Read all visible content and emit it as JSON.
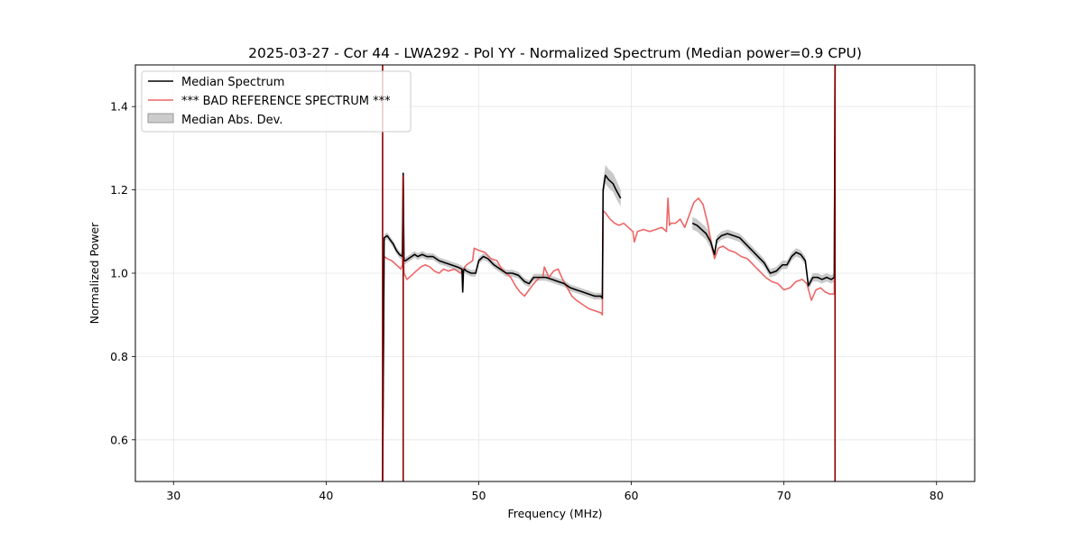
{
  "chart_data": {
    "type": "line",
    "title": "2025-03-27 - Cor 44 - LWA292 - Pol YY - Normalized Spectrum (Median power=0.9 CPU)",
    "xlabel": "Frequency (MHz)",
    "ylabel": "Normalized Power",
    "xlim": [
      27.5,
      82.5
    ],
    "ylim": [
      0.5,
      1.5
    ],
    "xticks": [
      30,
      40,
      50,
      60,
      70,
      80
    ],
    "yticks": [
      0.6,
      0.8,
      1.0,
      1.2,
      1.4
    ],
    "grid": true,
    "legend_position": "top-left",
    "colors": {
      "median": "#000000",
      "reference": "#ee6666",
      "mad": "#bbbbbb",
      "spike": "#8b0000"
    },
    "series": [
      {
        "name": "Median Spectrum",
        "x": [
          43.7,
          43.8,
          44.0,
          44.2,
          44.4,
          44.6,
          44.8,
          45.0,
          45.05,
          45.1,
          45.2,
          45.4,
          45.6,
          45.8,
          46.0,
          46.3,
          46.6,
          47.0,
          47.4,
          47.8,
          48.2,
          48.6,
          48.9,
          48.95,
          49.0,
          49.05,
          49.2,
          49.5,
          49.8,
          50.0,
          50.3,
          50.6,
          51.0,
          51.4,
          51.8,
          52.2,
          52.6,
          53.0,
          53.3,
          53.6,
          54.0,
          54.4,
          54.8,
          55.2,
          55.6,
          56.0,
          56.4,
          56.8,
          57.2,
          57.6,
          58.0,
          58.1,
          58.15,
          58.3,
          58.5,
          58.8,
          59.0,
          59.3
        ],
        "values": [
          0.5,
          1.085,
          1.09,
          1.08,
          1.07,
          1.055,
          1.045,
          1.04,
          1.24,
          1.03,
          1.03,
          1.035,
          1.04,
          1.045,
          1.04,
          1.045,
          1.04,
          1.04,
          1.03,
          1.025,
          1.02,
          1.015,
          1.01,
          0.955,
          1.005,
          1.01,
          1.005,
          1.0,
          1.0,
          1.03,
          1.04,
          1.035,
          1.02,
          1.01,
          1.0,
          1.0,
          0.995,
          0.98,
          0.975,
          0.99,
          0.99,
          0.99,
          0.985,
          0.98,
          0.975,
          0.965,
          0.96,
          0.955,
          0.95,
          0.945,
          0.945,
          0.94,
          1.2,
          1.235,
          1.225,
          1.215,
          1.2,
          1.18
        ]
      },
      {
        "name": "Median Spectrum",
        "x": [
          64.0,
          64.3,
          64.6,
          64.9,
          65.2,
          65.45,
          65.6,
          65.9,
          66.3,
          66.7,
          67.1,
          67.5,
          67.9,
          68.3,
          68.7,
          69.1,
          69.5,
          69.9,
          70.2,
          70.5,
          70.8,
          71.1,
          71.4,
          71.6,
          71.9,
          72.2,
          72.5,
          72.8,
          73.1,
          73.3,
          73.35
        ],
        "values": [
          1.12,
          1.115,
          1.105,
          1.095,
          1.075,
          1.045,
          1.08,
          1.09,
          1.095,
          1.09,
          1.085,
          1.07,
          1.055,
          1.04,
          1.025,
          1.0,
          1.005,
          1.02,
          1.02,
          1.04,
          1.05,
          1.045,
          1.03,
          0.97,
          0.99,
          0.99,
          0.985,
          0.99,
          0.985,
          0.99,
          1.5
        ]
      },
      {
        "name": "*** BAD REFERENCE SPECTRUM ***",
        "x": [
          43.7,
          43.8,
          44.0,
          44.3,
          44.6,
          44.9,
          45.0,
          45.05,
          45.1,
          45.3,
          45.6,
          45.9,
          46.2,
          46.5,
          46.8,
          47.1,
          47.4,
          47.7,
          48.0,
          48.4,
          48.8,
          49.2,
          49.6,
          49.7,
          50.0,
          50.4,
          50.8,
          51.2,
          51.5,
          51.8,
          52.1,
          52.4,
          52.7,
          53.0,
          53.3,
          53.6,
          54.0,
          54.2,
          54.3,
          54.6,
          54.9,
          55.2,
          55.5,
          55.8,
          56.1,
          56.4,
          56.8,
          57.2,
          57.6,
          58.0,
          58.1,
          58.15,
          58.3,
          58.6,
          58.9,
          59.2,
          59.5,
          59.8,
          60.1,
          60.2,
          60.4,
          60.8,
          61.2,
          61.6,
          62.0,
          62.3,
          62.4,
          62.5,
          62.6,
          62.9,
          63.2,
          63.5,
          63.8,
          64.1,
          64.4,
          64.7,
          65.0,
          65.3,
          65.45,
          65.7,
          66.0,
          66.4,
          66.8,
          67.2,
          67.6,
          68.0,
          68.4,
          68.8,
          69.2,
          69.6,
          70.0,
          70.4,
          70.8,
          71.2,
          71.5,
          71.8,
          72.1,
          72.4,
          72.7,
          73.0,
          73.3,
          73.35
        ],
        "values": [
          0.5,
          1.04,
          1.035,
          1.03,
          1.02,
          1.01,
          1.02,
          1.235,
          1.0,
          0.985,
          0.995,
          1.005,
          1.015,
          1.02,
          1.015,
          1.005,
          1.0,
          1.01,
          1.005,
          1.01,
          1.0,
          1.02,
          1.03,
          1.06,
          1.055,
          1.05,
          1.035,
          1.03,
          1.01,
          1.0,
          0.99,
          0.97,
          0.955,
          0.945,
          0.96,
          0.975,
          0.99,
          0.99,
          1.015,
          0.99,
          1.005,
          1.01,
          0.985,
          0.965,
          0.945,
          0.935,
          0.925,
          0.915,
          0.91,
          0.905,
          0.9,
          1.15,
          1.145,
          1.13,
          1.12,
          1.115,
          1.12,
          1.11,
          1.1,
          1.075,
          1.1,
          1.105,
          1.1,
          1.105,
          1.11,
          1.1,
          1.18,
          1.115,
          1.12,
          1.12,
          1.13,
          1.11,
          1.14,
          1.17,
          1.18,
          1.165,
          1.12,
          1.06,
          1.035,
          1.06,
          1.065,
          1.055,
          1.05,
          1.04,
          1.035,
          1.02,
          1.005,
          0.99,
          0.98,
          0.975,
          0.96,
          0.965,
          0.98,
          0.985,
          0.975,
          0.935,
          0.96,
          0.965,
          0.955,
          0.95,
          0.95,
          1.5
        ]
      }
    ],
    "mad_band": {
      "name": "Median Abs. Dev.",
      "segments": [
        {
          "x": [
            43.8,
            44.0,
            44.2,
            44.4,
            44.6,
            44.8,
            45.0,
            45.05,
            45.1,
            45.2,
            45.4,
            45.6,
            45.8,
            46.0,
            46.3,
            46.6,
            47.0,
            47.4,
            47.8,
            48.2,
            48.6,
            48.9,
            49.0,
            49.05,
            49.2,
            49.5,
            49.8,
            50.0,
            50.3,
            50.6,
            51.0,
            51.4,
            51.8,
            52.2,
            52.6,
            53.0,
            53.3,
            53.6,
            54.0,
            54.4,
            54.8,
            55.2,
            55.6,
            56.0,
            56.4,
            56.8,
            57.2,
            57.6,
            58.0,
            58.1,
            58.15,
            58.3,
            58.5,
            58.8,
            59.0,
            59.3
          ],
          "lower": [
            1.077,
            1.082,
            1.072,
            1.062,
            1.047,
            1.037,
            1.032,
            1.215,
            1.022,
            1.022,
            1.027,
            1.032,
            1.037,
            1.032,
            1.037,
            1.032,
            1.032,
            1.022,
            1.017,
            1.012,
            1.007,
            1.002,
            0.997,
            1.002,
            0.997,
            0.992,
            0.992,
            1.022,
            1.032,
            1.027,
            1.012,
            1.002,
            0.992,
            0.992,
            0.987,
            0.972,
            0.967,
            0.982,
            0.982,
            0.982,
            0.977,
            0.972,
            0.967,
            0.957,
            0.952,
            0.947,
            0.942,
            0.937,
            0.937,
            0.932,
            1.18,
            1.215,
            1.205,
            1.195,
            1.18,
            1.16
          ],
          "upper": [
            1.093,
            1.098,
            1.088,
            1.078,
            1.063,
            1.053,
            1.048,
            1.265,
            1.038,
            1.038,
            1.043,
            1.048,
            1.053,
            1.048,
            1.053,
            1.048,
            1.048,
            1.038,
            1.033,
            1.028,
            1.023,
            1.018,
            1.013,
            1.018,
            1.013,
            1.008,
            1.008,
            1.038,
            1.048,
            1.043,
            1.028,
            1.018,
            1.008,
            1.008,
            1.003,
            0.988,
            0.983,
            0.998,
            0.998,
            0.998,
            0.993,
            0.988,
            0.983,
            0.973,
            0.968,
            0.963,
            0.958,
            0.953,
            0.953,
            0.948,
            1.22,
            1.26,
            1.25,
            1.24,
            1.225,
            1.2
          ]
        },
        {
          "x": [
            64.0,
            64.3,
            64.6,
            64.9,
            65.2,
            65.45,
            65.6,
            65.9,
            66.3,
            66.7,
            67.1,
            67.5,
            67.9,
            68.3,
            68.7,
            69.1,
            69.5,
            69.9,
            70.2,
            70.5,
            70.8,
            71.1,
            71.4,
            71.6,
            71.9,
            72.2,
            72.5,
            72.8,
            73.1,
            73.3
          ],
          "lower": [
            1.105,
            1.1,
            1.09,
            1.08,
            1.06,
            1.035,
            1.07,
            1.08,
            1.085,
            1.08,
            1.075,
            1.06,
            1.045,
            1.03,
            1.015,
            0.99,
            0.995,
            1.01,
            1.01,
            1.03,
            1.04,
            1.035,
            1.02,
            0.96,
            0.98,
            0.98,
            0.975,
            0.98,
            0.975,
            0.98
          ],
          "upper": [
            1.135,
            1.13,
            1.12,
            1.11,
            1.09,
            1.055,
            1.09,
            1.1,
            1.105,
            1.1,
            1.095,
            1.08,
            1.065,
            1.05,
            1.035,
            1.01,
            1.015,
            1.03,
            1.03,
            1.05,
            1.06,
            1.055,
            1.04,
            0.98,
            1.0,
            1.0,
            0.995,
            1.0,
            0.995,
            1.0
          ]
        }
      ]
    }
  }
}
